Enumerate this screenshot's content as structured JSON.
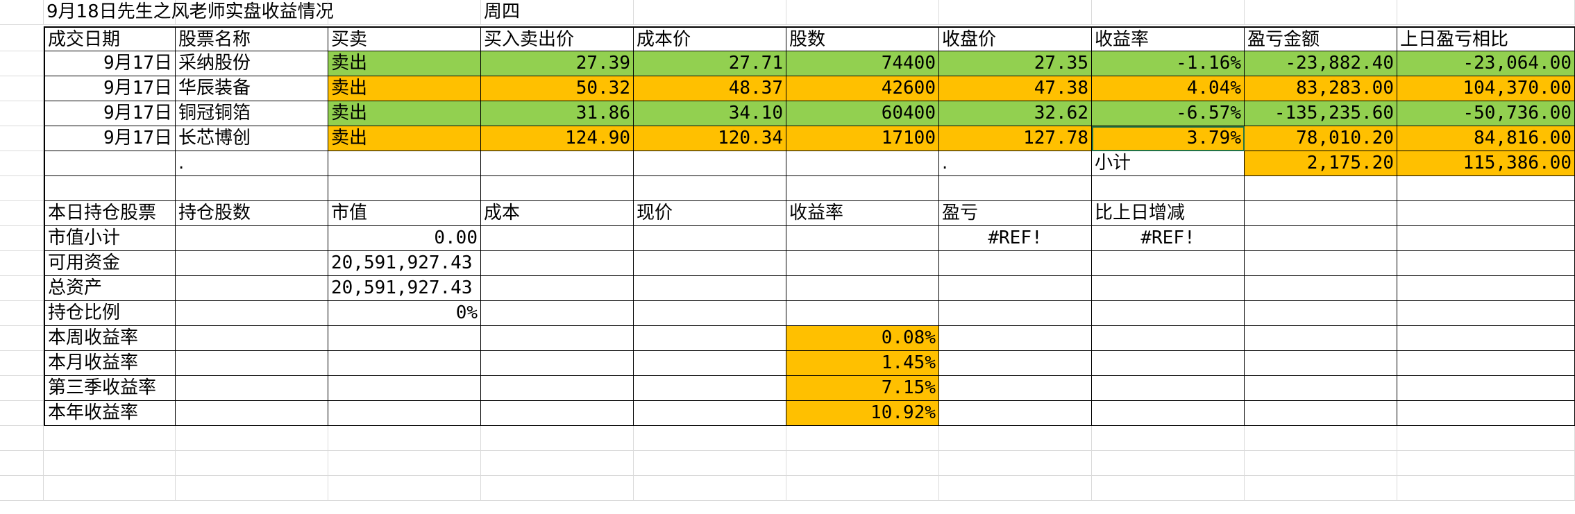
{
  "title_row": {
    "title": "9月18日先生之风老师实盘收益情况",
    "weekday": "周四"
  },
  "trade_headers": [
    "成交日期",
    "股票名称",
    "买卖",
    "买入卖出价",
    "成本价",
    "股数",
    "收盘价",
    "收益率",
    "盈亏金额",
    "上日盈亏相比"
  ],
  "trades": [
    {
      "date": "9月17日",
      "name": "采纳股份",
      "side": "卖出",
      "price": "27.39",
      "cost": "27.71",
      "shares": "74400",
      "close": "27.35",
      "rate": "-1.16%",
      "pnl": "-23,882.40",
      "diff": "-23,064.00",
      "color": "#92d050"
    },
    {
      "date": "9月17日",
      "name": "华辰装备",
      "side": "卖出",
      "price": "50.32",
      "cost": "48.37",
      "shares": "42600",
      "close": "47.38",
      "rate": "4.04%",
      "pnl": "83,283.00",
      "diff": "104,370.00",
      "color": "#ffc000"
    },
    {
      "date": "9月17日",
      "name": "铜冠铜箔",
      "side": "卖出",
      "price": "31.86",
      "cost": "34.10",
      "shares": "60400",
      "close": "32.62",
      "rate": "-6.57%",
      "pnl": "-135,235.60",
      "diff": "-50,736.00",
      "color": "#92d050"
    },
    {
      "date": "9月17日",
      "name": "长芯博创",
      "side": "卖出",
      "price": "124.90",
      "cost": "120.34",
      "shares": "17100",
      "close": "127.78",
      "rate": "3.79%",
      "pnl": "78,010.20",
      "diff": "84,816.00",
      "color": "#ffc000"
    }
  ],
  "subtotal": {
    "dot1": ".",
    "dot2": ".",
    "label": "小计",
    "pnl": "2,175.20",
    "diff": "115,386.00"
  },
  "holding_headers": [
    "本日持仓股票",
    "持仓股数",
    "市值",
    "成本",
    "现价",
    "收益率",
    "盈亏",
    "比上日增减"
  ],
  "summary": {
    "market_value_label": "市值小计",
    "market_value": "0.00",
    "pnl_ref": "#REF!",
    "diff_ref": "#REF!",
    "cash_label": "可用资金",
    "cash": "20,591,927.43",
    "total_label": "总资产",
    "total": "20,591,927.43",
    "ratio_label": "持仓比例",
    "ratio": "0%",
    "week_label": "本周收益率",
    "week": "0.08%",
    "month_label": "本月收益率",
    "month": "1.45%",
    "quarter_label": "第三季收益率",
    "quarter": "7.15%",
    "year_label": "本年收益率",
    "year": "10.92%"
  },
  "colors": {
    "green": "#92d050",
    "orange": "#ffc000",
    "gridline": "#dadada",
    "selection": "#217346"
  }
}
